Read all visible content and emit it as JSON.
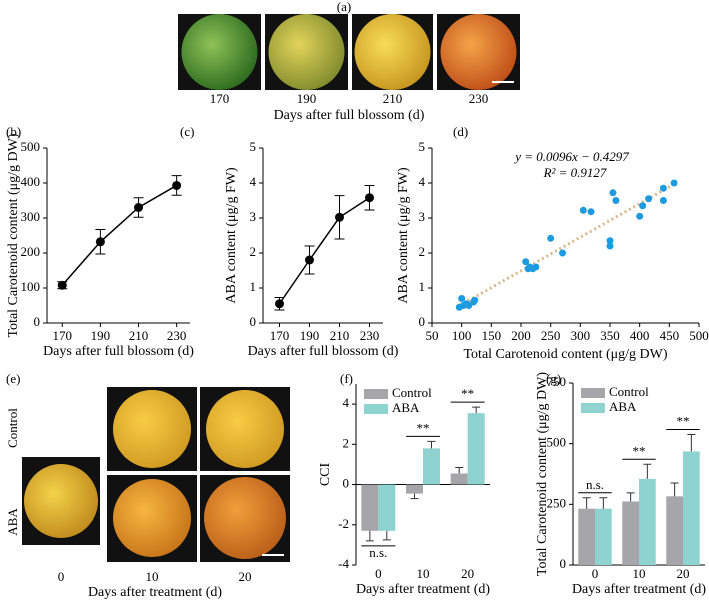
{
  "photo_panels": {
    "a": {
      "label": "(a)",
      "days": [
        "170",
        "190",
        "210",
        "230"
      ],
      "xlabel": "Days after full blossom (d)"
    },
    "e": {
      "label": "(e)",
      "rows": [
        "Control",
        "ABA"
      ],
      "days": [
        "0",
        "10",
        "20"
      ],
      "xlabel": "Days after treatment (d)"
    }
  },
  "chart_data": [
    {
      "type": "line",
      "label": "(b)",
      "x": [
        170,
        190,
        210,
        230
      ],
      "values": [
        108,
        232,
        330,
        393
      ],
      "errors": [
        10,
        35,
        28,
        28
      ],
      "color": "#000000",
      "xlim": [
        162,
        237
      ],
      "ylim": [
        0,
        500
      ],
      "xticks": [
        170,
        190,
        210,
        230
      ],
      "yticks": [
        0,
        100,
        200,
        300,
        400,
        500
      ],
      "xlabel": "Days after full blossom (d)",
      "ylabel": "Total Carotenoid content (μg/g DW)"
    },
    {
      "type": "line",
      "label": "(c)",
      "x": [
        170,
        190,
        210,
        230
      ],
      "values": [
        0.55,
        1.8,
        3.02,
        3.58
      ],
      "errors": [
        0.18,
        0.4,
        0.62,
        0.35
      ],
      "color": "#000000",
      "xlim": [
        159,
        239
      ],
      "ylim": [
        0,
        5
      ],
      "xticks": [
        170,
        190,
        210,
        230
      ],
      "yticks": [
        0,
        1,
        2,
        3,
        4,
        5
      ],
      "xlabel": "Days after full blossom (d)",
      "ylabel": "ABA content (μg/g FW)"
    },
    {
      "type": "scatter",
      "label": "(d)",
      "x": [
        96,
        100,
        103,
        108,
        112,
        120,
        122,
        208,
        212,
        215,
        220,
        225,
        250,
        270,
        305,
        318,
        350,
        350,
        355,
        360,
        400,
        405,
        415,
        440,
        440,
        458
      ],
      "values": [
        0.45,
        0.7,
        0.5,
        0.55,
        0.5,
        0.6,
        0.65,
        1.75,
        1.55,
        1.6,
        1.55,
        1.6,
        2.42,
        2.0,
        3.22,
        3.18,
        2.2,
        2.35,
        3.72,
        3.5,
        3.05,
        3.35,
        3.55,
        3.5,
        3.85,
        4.0
      ],
      "color": "#1e9be0",
      "trendline": {
        "slope": 0.0096,
        "intercept": -0.4297,
        "color": "#d8b98c"
      },
      "equation": "y = 0.0096x − 0.4297",
      "r_squared": "R² = 0.9127",
      "xlim": [
        50,
        500
      ],
      "ylim": [
        0,
        5
      ],
      "xticks": [
        50,
        100,
        150,
        200,
        250,
        300,
        350,
        400,
        450,
        500
      ],
      "yticks": [
        0,
        1,
        2,
        3,
        4,
        5
      ],
      "xlabel": "Total Carotenoid content (μg/g DW)",
      "ylabel": "ABA content (μg/g FW)"
    },
    {
      "type": "bar",
      "label": "(f)",
      "categories": [
        "0",
        "10",
        "20"
      ],
      "series": [
        {
          "name": "Control",
          "color": "#a6a6aa",
          "values": [
            -2.3,
            -0.45,
            0.55
          ],
          "errors": [
            0.5,
            0.25,
            0.3
          ]
        },
        {
          "name": "ABA",
          "color": "#8ed3cf",
          "values": [
            -2.3,
            1.8,
            3.55
          ],
          "errors": [
            0.45,
            0.35,
            0.3
          ]
        }
      ],
      "significance": [
        "n.s.",
        "**",
        "**"
      ],
      "ylim": [
        -4,
        5
      ],
      "yticks": [
        -4,
        -2,
        0,
        2,
        4
      ],
      "xlabel": "Days after treatment (d)",
      "ylabel": "CCI"
    },
    {
      "type": "bar",
      "label": "(g)",
      "categories": [
        "0",
        "10",
        "20"
      ],
      "series": [
        {
          "name": "Control",
          "color": "#a6a6aa",
          "values": [
            232,
            262,
            283
          ],
          "errors": [
            45,
            35,
            55
          ]
        },
        {
          "name": "ABA",
          "color": "#8ed3cf",
          "values": [
            232,
            355,
            468
          ],
          "errors": [
            45,
            60,
            70
          ]
        }
      ],
      "significance": [
        "n.s.",
        "**",
        "**"
      ],
      "ylim": [
        0,
        750
      ],
      "yticks": [
        0,
        250,
        500,
        750
      ],
      "xlabel": "Days after treatment (d)",
      "ylabel": "Total Carotenoid content (μg/g DW)"
    }
  ]
}
